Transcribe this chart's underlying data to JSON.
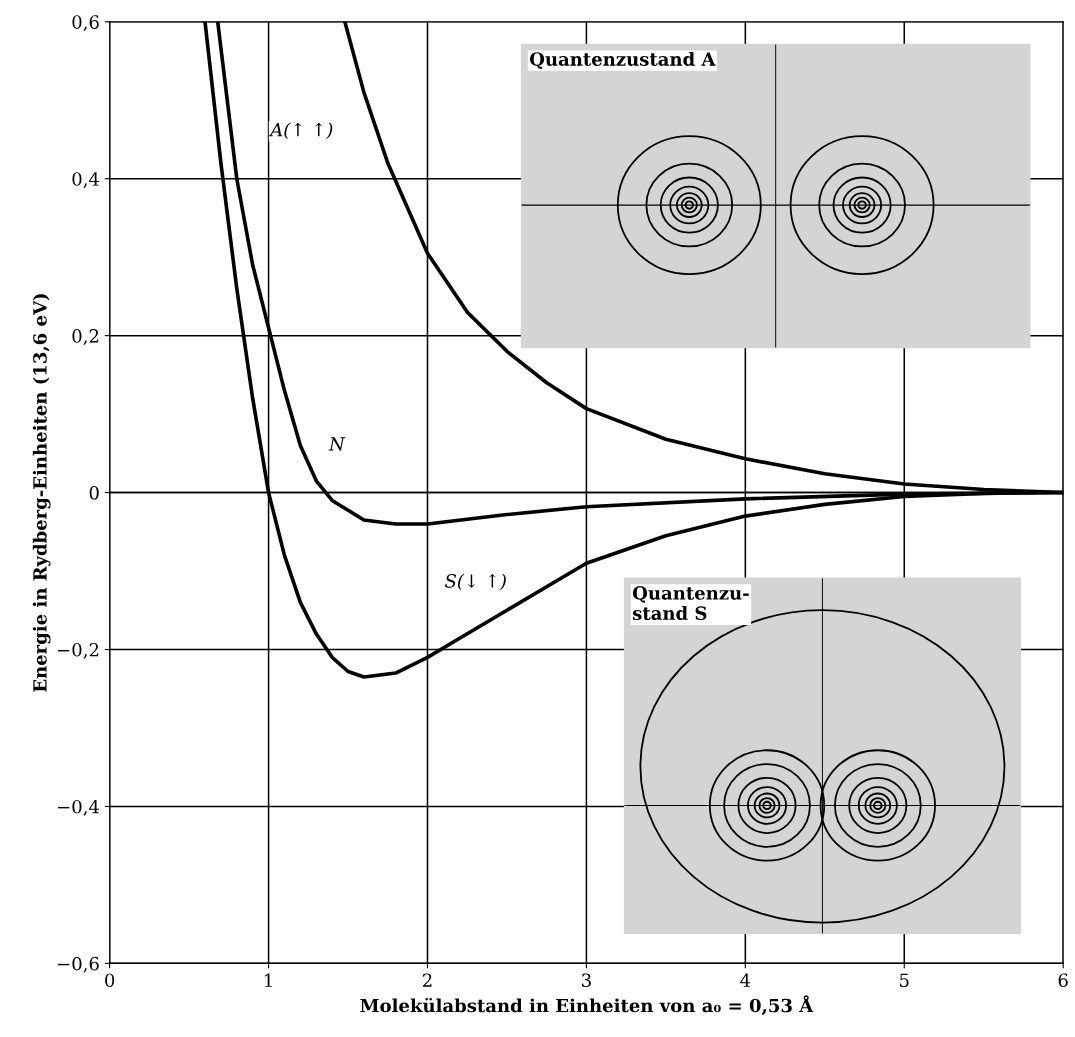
{
  "chart_data": {
    "type": "line",
    "xlabel": "Molekülabstand in Einheiten von a₀ = 0,53 Å",
    "ylabel": "Energie in Rydberg-Einheiten (13,6 eV)",
    "series": [
      {
        "name": "A(↑ ↑)",
        "color": "#000000",
        "x": [
          1.48,
          1.6,
          1.75,
          2,
          2.25,
          2.5,
          2.75,
          3,
          3.5,
          4,
          4.5,
          5,
          5.5,
          6
        ],
        "values": [
          0.6,
          0.51,
          0.42,
          0.305,
          0.23,
          0.18,
          0.14,
          0.107,
          0.068,
          0.043,
          0.024,
          0.011,
          0.004,
          0
        ]
      },
      {
        "name": "N",
        "color": "#000000",
        "x": [
          0.68,
          0.8,
          0.9,
          1.0,
          1.1,
          1.2,
          1.3,
          1.4,
          1.6,
          1.8,
          2,
          2.5,
          3,
          4,
          5,
          6
        ],
        "values": [
          0.6,
          0.4,
          0.29,
          0.21,
          0.13,
          0.06,
          0.015,
          -0.01,
          -0.035,
          -0.04,
          -0.04,
          -0.028,
          -0.018,
          -0.008,
          -0.002,
          0
        ]
      },
      {
        "name": "S(↓ ↑)",
        "color": "#000000",
        "x": [
          0.6,
          0.7,
          0.8,
          0.9,
          1.0,
          1.1,
          1.2,
          1.3,
          1.4,
          1.5,
          1.6,
          1.8,
          2,
          2.25,
          2.5,
          3,
          3.5,
          4,
          4.5,
          5,
          5.5,
          6
        ],
        "values": [
          0.6,
          0.42,
          0.26,
          0.12,
          0.0,
          -0.08,
          -0.14,
          -0.18,
          -0.21,
          -0.228,
          -0.235,
          -0.23,
          -0.21,
          -0.18,
          -0.15,
          -0.09,
          -0.055,
          -0.03,
          -0.015,
          -0.005,
          -0.001,
          0
        ]
      }
    ],
    "xlim": [
      0,
      6
    ],
    "xticks": [
      0,
      1,
      2,
      3,
      4,
      5,
      6
    ],
    "ylim": [
      -0.6,
      0.6
    ],
    "yticks": [
      {
        "value": -0.6,
        "label": "−0,6"
      },
      {
        "value": -0.4,
        "label": "−0,4"
      },
      {
        "value": -0.2,
        "label": "−0,2"
      },
      0,
      {
        "value": 0.2,
        "label": "0,2"
      },
      {
        "value": 0.4,
        "label": "0,4"
      },
      {
        "value": 0.6,
        "label": "0,6"
      }
    ],
    "grid": true,
    "legend": false,
    "marker": "none",
    "line_style": "solid",
    "annotations": [
      "Quantenzustand A",
      "Quantenzu-\nstand S"
    ]
  }
}
